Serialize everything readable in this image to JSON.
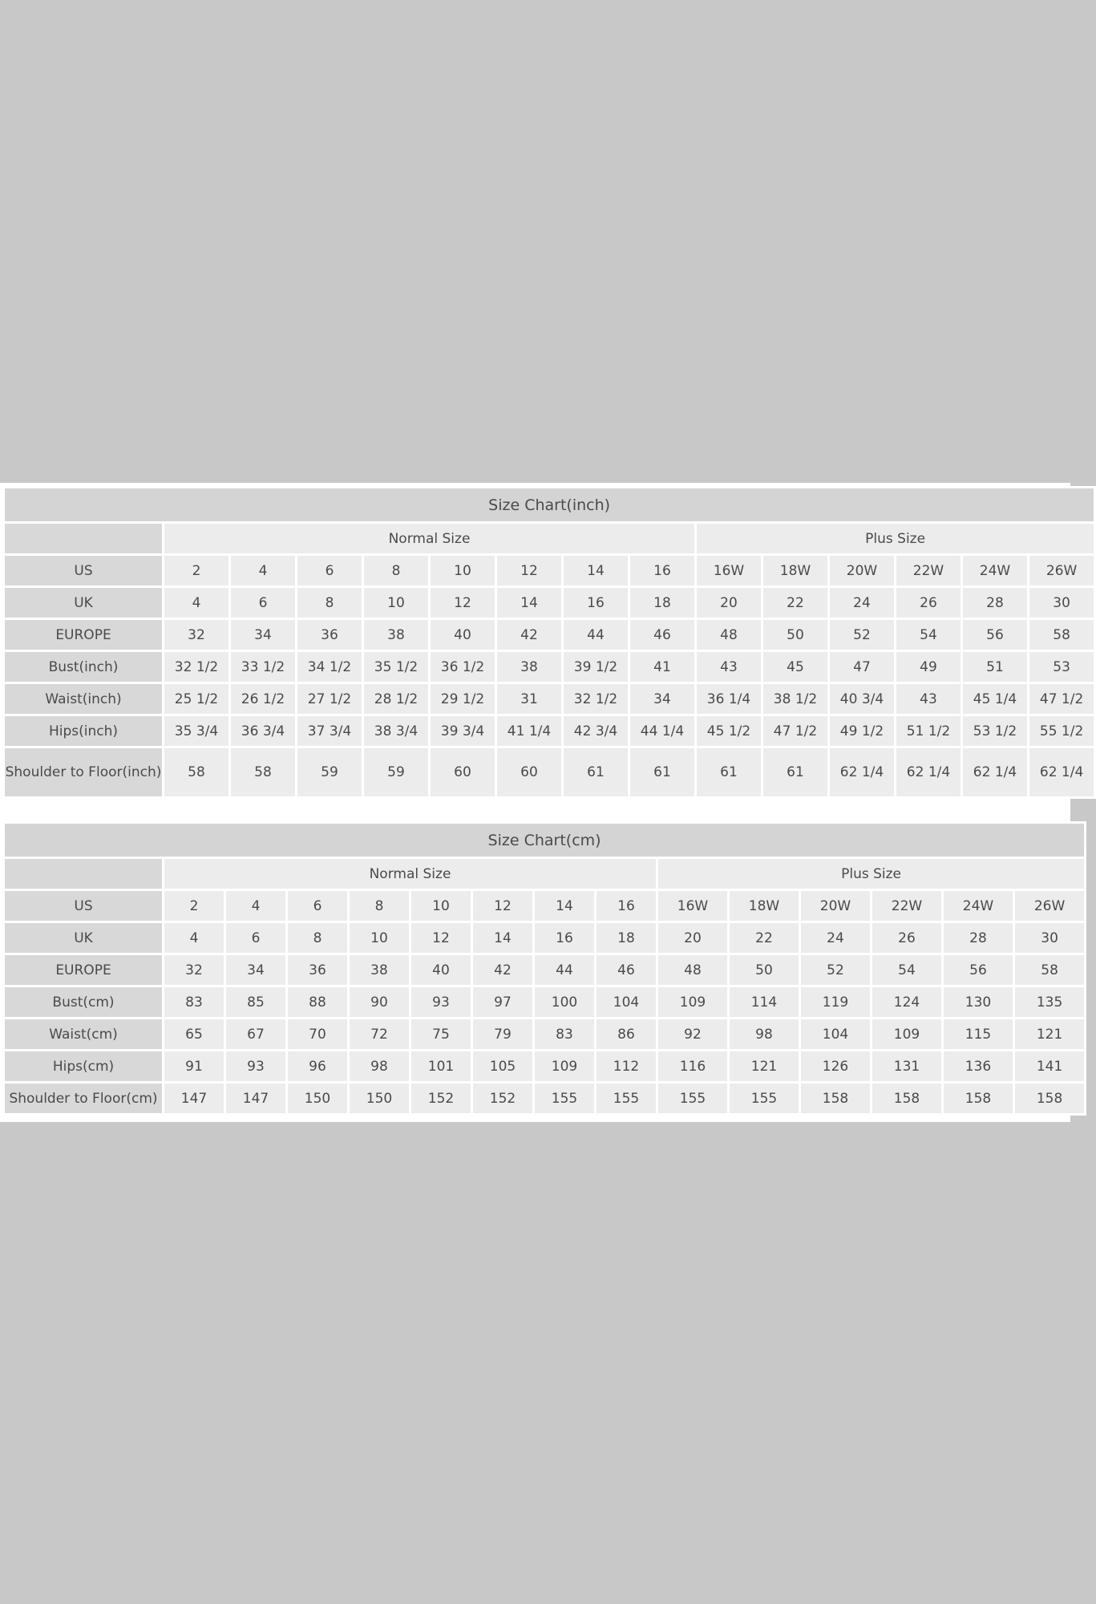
{
  "tables": [
    {
      "title": "Size Chart(inch)",
      "groups": [
        "Normal Size",
        "Plus Size"
      ],
      "rows": [
        {
          "label": "US",
          "values": [
            "2",
            "4",
            "6",
            "8",
            "10",
            "12",
            "14",
            "16",
            "16W",
            "18W",
            "20W",
            "22W",
            "24W",
            "26W"
          ]
        },
        {
          "label": "UK",
          "values": [
            "4",
            "6",
            "8",
            "10",
            "12",
            "14",
            "16",
            "18",
            "20",
            "22",
            "24",
            "26",
            "28",
            "30"
          ]
        },
        {
          "label": "EUROPE",
          "values": [
            "32",
            "34",
            "36",
            "38",
            "40",
            "42",
            "44",
            "46",
            "48",
            "50",
            "52",
            "54",
            "56",
            "58"
          ]
        },
        {
          "label": "Bust(inch)",
          "values": [
            "32 1/2",
            "33 1/2",
            "34 1/2",
            "35 1/2",
            "36 1/2",
            "38",
            "39 1/2",
            "41",
            "43",
            "45",
            "47",
            "49",
            "51",
            "53"
          ]
        },
        {
          "label": "Waist(inch)",
          "values": [
            "25 1/2",
            "26 1/2",
            "27 1/2",
            "28 1/2",
            "29 1/2",
            "31",
            "32 1/2",
            "34",
            "36 1/4",
            "38 1/2",
            "40 3/4",
            "43",
            "45 1/4",
            "47 1/2"
          ]
        },
        {
          "label": "Hips(inch)",
          "values": [
            "35 3/4",
            "36 3/4",
            "37 3/4",
            "38 3/4",
            "39 3/4",
            "41 1/4",
            "42 3/4",
            "44 1/4",
            "45 1/2",
            "47 1/2",
            "49 1/2",
            "51 1/2",
            "53 1/2",
            "55 1/2"
          ]
        },
        {
          "label": "Shoulder to Floor(inch)",
          "values": [
            "58",
            "58",
            "59",
            "59",
            "60",
            "60",
            "61",
            "61",
            "61",
            "61",
            "62 1/4",
            "62 1/4",
            "62 1/4",
            "62 1/4"
          ]
        }
      ]
    },
    {
      "title": "Size Chart(cm)",
      "groups": [
        "Normal Size",
        "Plus Size"
      ],
      "rows": [
        {
          "label": "US",
          "values": [
            "2",
            "4",
            "6",
            "8",
            "10",
            "12",
            "14",
            "16",
            "16W",
            "18W",
            "20W",
            "22W",
            "24W",
            "26W"
          ]
        },
        {
          "label": "UK",
          "values": [
            "4",
            "6",
            "8",
            "10",
            "12",
            "14",
            "16",
            "18",
            "20",
            "22",
            "24",
            "26",
            "28",
            "30"
          ]
        },
        {
          "label": "EUROPE",
          "values": [
            "32",
            "34",
            "36",
            "38",
            "40",
            "42",
            "44",
            "46",
            "48",
            "50",
            "52",
            "54",
            "56",
            "58"
          ]
        },
        {
          "label": "Bust(cm)",
          "values": [
            "83",
            "85",
            "88",
            "90",
            "93",
            "97",
            "100",
            "104",
            "109",
            "114",
            "119",
            "124",
            "130",
            "135"
          ]
        },
        {
          "label": "Waist(cm)",
          "values": [
            "65",
            "67",
            "70",
            "72",
            "75",
            "79",
            "83",
            "86",
            "92",
            "98",
            "104",
            "109",
            "115",
            "121"
          ]
        },
        {
          "label": "Hips(cm)",
          "values": [
            "91",
            "93",
            "96",
            "98",
            "101",
            "105",
            "109",
            "112",
            "116",
            "121",
            "126",
            "131",
            "136",
            "141"
          ]
        },
        {
          "label": "Shoulder to Floor(cm)",
          "values": [
            "147",
            "147",
            "150",
            "150",
            "152",
            "152",
            "155",
            "155",
            "155",
            "155",
            "158",
            "158",
            "158",
            "158"
          ]
        }
      ]
    }
  ],
  "colors": {
    "background": "#c8c8c8",
    "title_bg": "#d4d4d4",
    "label_bg": "#d8d8d8",
    "cell_bg": "#ececec",
    "text": "#4a4a4a"
  }
}
